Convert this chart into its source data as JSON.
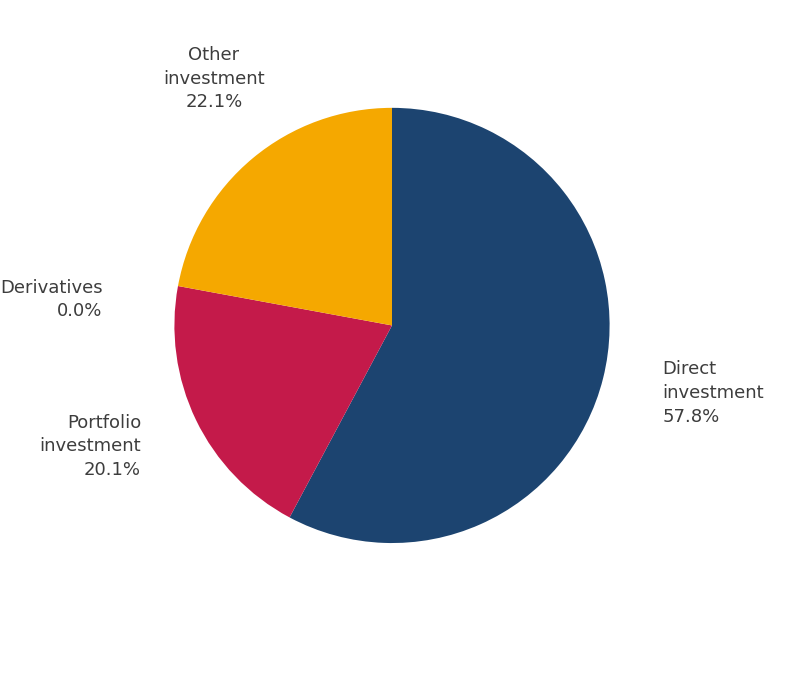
{
  "values": [
    57.8,
    20.1,
    0.001,
    22.1
  ],
  "colors": [
    "#1c4470",
    "#c41a4a",
    "#f5a800",
    "#f5a800"
  ],
  "background_color": "#ffffff",
  "startangle": 90,
  "label_fontsize": 13,
  "label_color": "#3d3d3d",
  "label_texts": [
    "Direct\ninvestment\n57.8%",
    "Portfolio\ninvestment\n20.1%",
    "Derivatives\n0.0%",
    "Other\ninvestment\n22.1%"
  ],
  "label_ha": [
    "left",
    "right",
    "right",
    "center"
  ],
  "label_va": [
    "center",
    "center",
    "center",
    "bottom"
  ],
  "figwidth": 8.0,
  "figheight": 6.78,
  "dpi": 100
}
